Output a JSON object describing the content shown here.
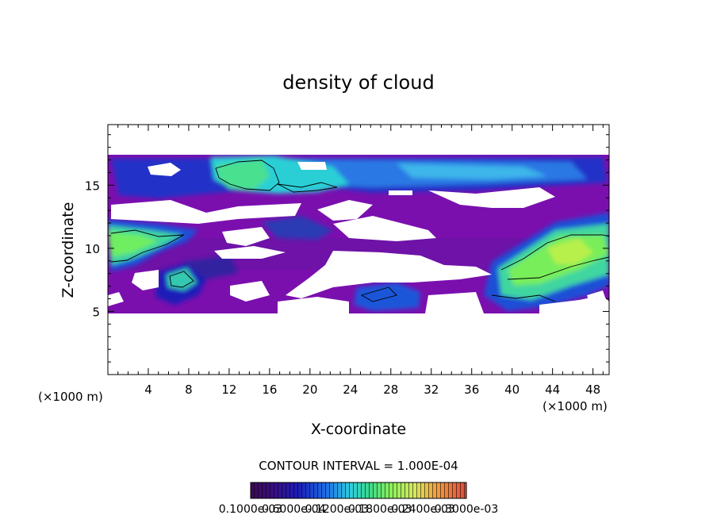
{
  "chart_data": {
    "type": "heatmap",
    "title": "density of cloud",
    "xlabel": "X-coordinate",
    "ylabel": "Z-coordinate",
    "x_unit": "(×1000 m)",
    "y_unit": "(×1000 m)",
    "xlim": [
      0,
      49.6
    ],
    "ylim": [
      0,
      19.8
    ],
    "x_ticks": [
      "4",
      "8",
      "12",
      "16",
      "20",
      "24",
      "28",
      "32",
      "36",
      "40",
      "44",
      "48"
    ],
    "x_tick_values": [
      4,
      8,
      12,
      16,
      20,
      24,
      28,
      32,
      36,
      40,
      44,
      48
    ],
    "y_ticks": [
      "5",
      "10",
      "15"
    ],
    "y_tick_values": [
      5,
      10,
      15
    ],
    "contour_interval_text": "CONTOUR INTERVAL = 1.000E-04",
    "colorbar_labels": [
      "0.1000e-03",
      "0.6000e-04",
      "0.1200e-03",
      "0.1800e-03",
      "0.2400e-03",
      "0.3000e-03"
    ],
    "colormap": [
      "#3c0a55",
      "#4a0f75",
      "#1c1cb8",
      "#1e6ee6",
      "#2ecde0",
      "#3ad98c",
      "#8cf05a",
      "#e6e650",
      "#f0a040",
      "#e04a3c"
    ],
    "cloud_fill_color": "#7a0fae",
    "contour_color": "#000000",
    "cells": [
      {
        "x0": 0,
        "x1": 49.6,
        "z0": 5.0,
        "z1": 17.5,
        "v": 0.2
      },
      {
        "x0": 10.0,
        "x1": 40.0,
        "z0": 15.0,
        "z1": 17.2,
        "v": 1.4
      },
      {
        "x0": 11.0,
        "x1": 17.0,
        "z0": 15.5,
        "z1": 17.0,
        "v": 2.2
      },
      {
        "x0": 0,
        "x1": 8.0,
        "z0": 9.0,
        "z1": 12.0,
        "v": 1.8
      },
      {
        "x0": 39.0,
        "x1": 49.6,
        "z0": 6.5,
        "z1": 12.5,
        "v": 2.3
      },
      {
        "x0": 26.0,
        "x1": 30.5,
        "z0": 5.3,
        "z1": 6.8,
        "v": 1.2
      },
      {
        "x0": 5.5,
        "x1": 9.0,
        "z0": 6.0,
        "z1": 8.5,
        "v": 1.0
      }
    ],
    "grid": false,
    "legend": "colorbar-bottom"
  }
}
